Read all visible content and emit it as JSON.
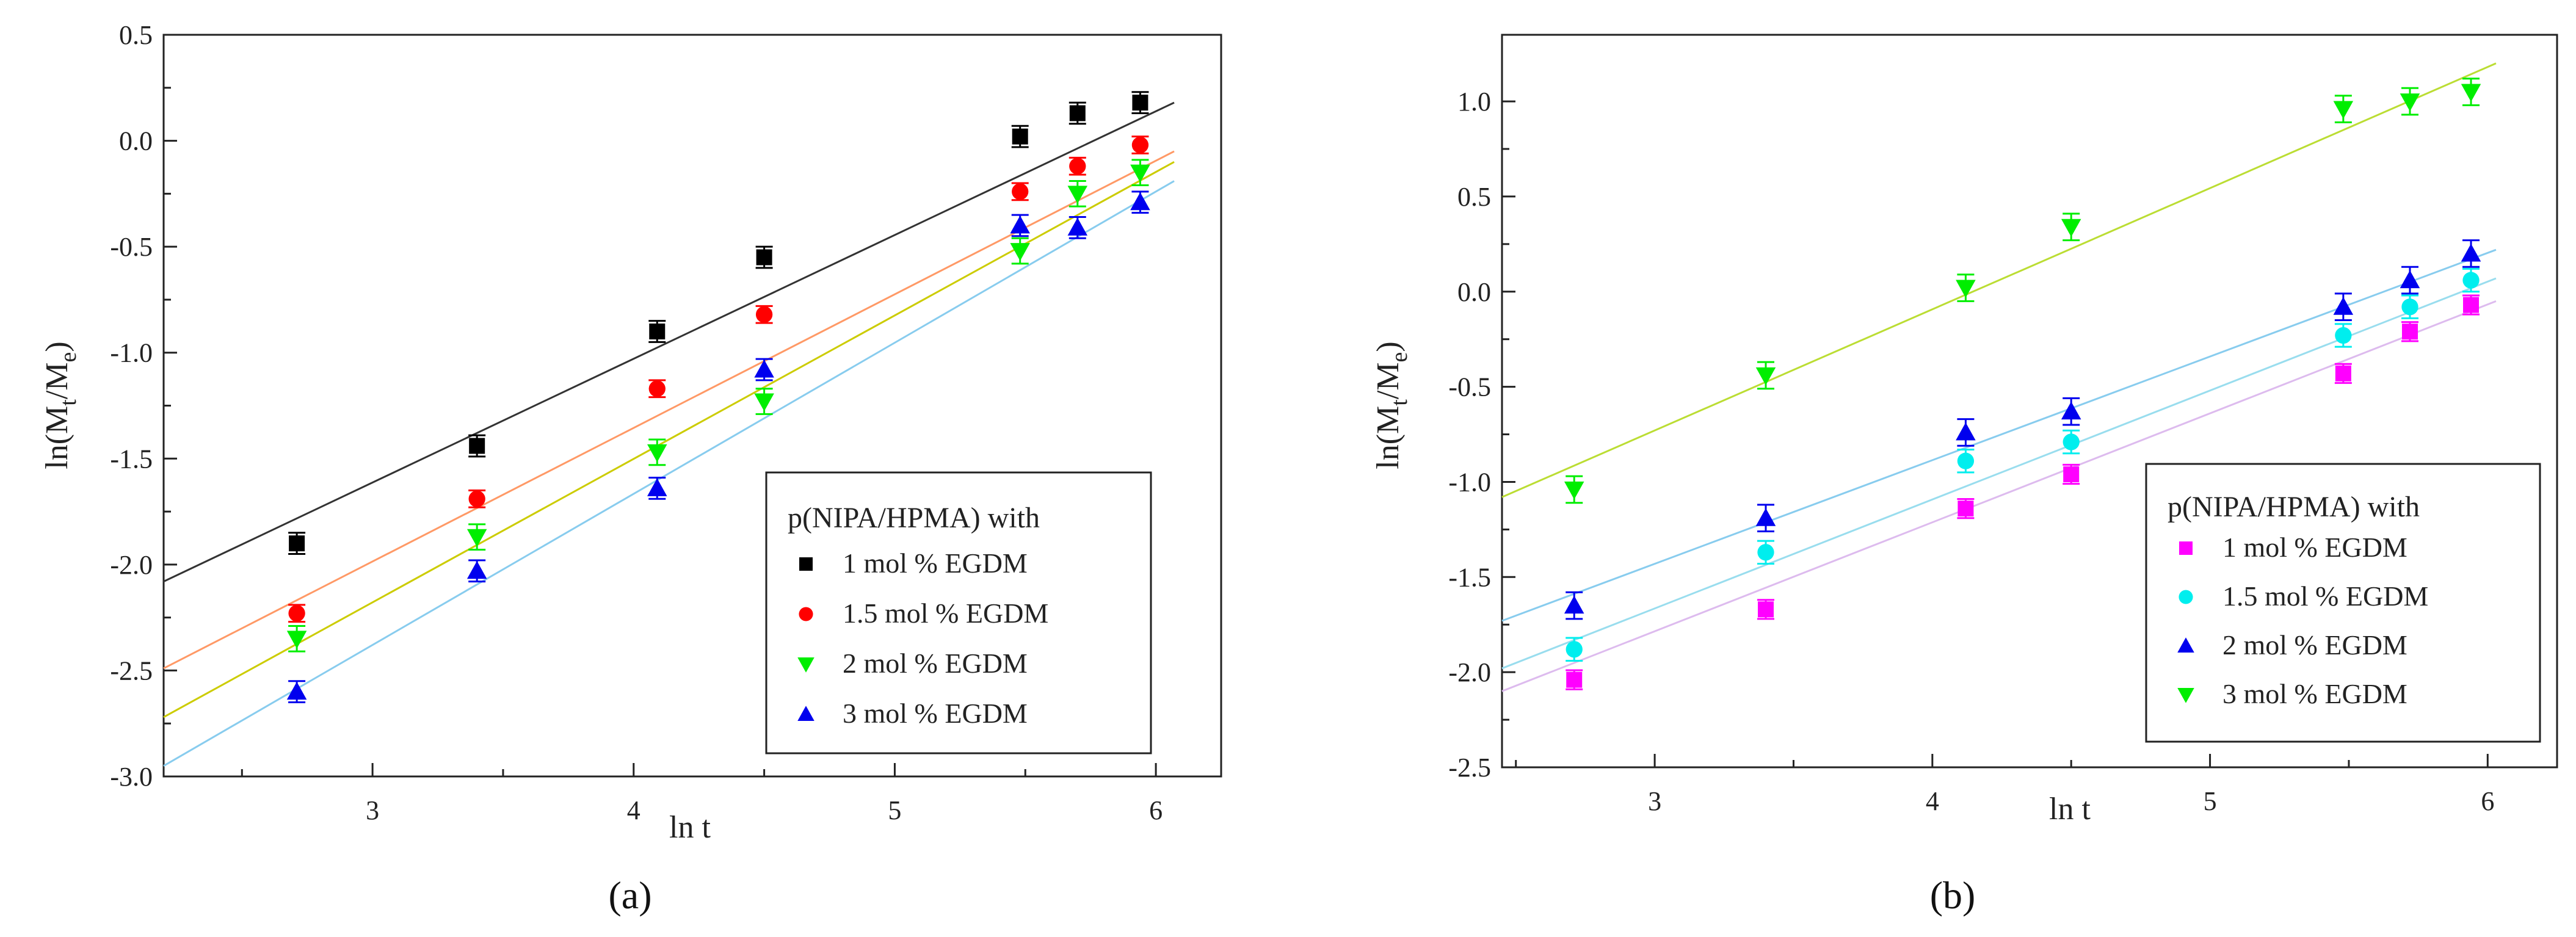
{
  "chart_data": [
    {
      "type": "scatter",
      "panel_label": "(a)",
      "xlabel": "ln t",
      "ylabel_main": "ln(M",
      "ylabel_sub1": "t",
      "ylabel_mid": "/M",
      "ylabel_sub2": "e",
      "ylabel_end": ")",
      "xlim": [
        2.2,
        6.25
      ],
      "ylim": [
        -3.0,
        0.5
      ],
      "xticks": [
        3,
        4,
        5,
        6
      ],
      "yticks": [
        -3.0,
        -2.5,
        -2.0,
        -1.5,
        -1.0,
        -0.5,
        0.0,
        0.5
      ],
      "ytick_labels": [
        "-3.0",
        "-2.5",
        "-2.0",
        "-1.5",
        "-1.0",
        "-0.5",
        "0.0",
        "0.5"
      ],
      "legend_title": "p(NIPA/HPMA) with",
      "legend_position": "bottom-right",
      "series": [
        {
          "name": "1 mol % EGDM",
          "color": "#000000",
          "marker": "square",
          "line_color": "#333333",
          "x": [
            2.71,
            3.4,
            4.09,
            4.5,
            5.48,
            5.7,
            5.94
          ],
          "y": [
            -1.9,
            -1.44,
            -0.9,
            -0.55,
            0.02,
            0.13,
            0.18
          ],
          "err": 0.05,
          "fit": [
            [
              2.2,
              -2.08
            ],
            [
              6.07,
              0.18
            ]
          ]
        },
        {
          "name": "1.5 mol % EGDM",
          "color": "#ff0000",
          "marker": "circle",
          "line_color": "#ff9966",
          "x": [
            2.71,
            3.4,
            4.09,
            4.5,
            5.48,
            5.7,
            5.94
          ],
          "y": [
            -2.23,
            -1.69,
            -1.17,
            -0.82,
            -0.24,
            -0.12,
            -0.02
          ],
          "err": 0.04,
          "fit": [
            [
              2.2,
              -2.49
            ],
            [
              6.07,
              -0.05
            ]
          ]
        },
        {
          "name": "2 mol % EGDM",
          "color": "#00ee00",
          "marker": "triangle-down",
          "line_color": "#cccc00",
          "x": [
            2.71,
            3.4,
            4.09,
            4.5,
            5.48,
            5.7,
            5.94
          ],
          "y": [
            -2.35,
            -1.87,
            -1.47,
            -1.23,
            -0.52,
            -0.25,
            -0.15
          ],
          "err": 0.06,
          "fit": [
            [
              2.2,
              -2.72
            ],
            [
              6.07,
              -0.1
            ]
          ]
        },
        {
          "name": "3 mol % EGDM",
          "color": "#0000ee",
          "marker": "triangle-up",
          "line_color": "#88ccee",
          "x": [
            2.71,
            3.4,
            4.09,
            4.5,
            5.48,
            5.7,
            5.94
          ],
          "y": [
            -2.6,
            -2.03,
            -1.64,
            -1.08,
            -0.4,
            -0.41,
            -0.29
          ],
          "err": 0.05,
          "fit": [
            [
              2.2,
              -2.95
            ],
            [
              6.07,
              -0.19
            ]
          ]
        }
      ]
    },
    {
      "type": "scatter",
      "panel_label": "(b)",
      "xlabel": "ln t",
      "ylabel_main": "ln(M",
      "ylabel_sub1": "t",
      "ylabel_mid": "/M",
      "ylabel_sub2": "e",
      "ylabel_end": ")",
      "xlim": [
        2.45,
        6.25
      ],
      "ylim": [
        -2.5,
        1.35
      ],
      "xticks": [
        3,
        4,
        5,
        6
      ],
      "yticks": [
        -2.5,
        -2.0,
        -1.5,
        -1.0,
        -0.5,
        0.0,
        0.5,
        1.0
      ],
      "ytick_labels": [
        "-2.5",
        "-2.0",
        "-1.5",
        "-1.0",
        "-0.5",
        "0.0",
        "0.5",
        "1.0"
      ],
      "legend_title": "p(NIPA/HPMA) with",
      "legend_position": "bottom-right",
      "series": [
        {
          "name": "1 mol % EGDM",
          "color": "#ff00ff",
          "marker": "square",
          "line_color": "#ddbbee",
          "x": [
            2.71,
            3.4,
            4.12,
            4.5,
            5.48,
            5.72,
            5.94
          ],
          "y": [
            -2.04,
            -1.67,
            -1.14,
            -0.96,
            -0.43,
            -0.21,
            -0.07
          ],
          "err": 0.05,
          "fit": [
            [
              2.45,
              -2.1
            ],
            [
              6.03,
              -0.05
            ]
          ]
        },
        {
          "name": "1.5 mol % EGDM",
          "color": "#00eeee",
          "marker": "circle",
          "line_color": "#99ddee",
          "x": [
            2.71,
            3.4,
            4.12,
            4.5,
            5.48,
            5.72,
            5.94
          ],
          "y": [
            -1.88,
            -1.37,
            -0.89,
            -0.79,
            -0.23,
            -0.08,
            0.06
          ],
          "err": 0.06,
          "fit": [
            [
              2.45,
              -1.98
            ],
            [
              6.03,
              0.07
            ]
          ]
        },
        {
          "name": "2 mol % EGDM",
          "color": "#0000ee",
          "marker": "triangle-up",
          "line_color": "#88ccee",
          "x": [
            2.71,
            3.4,
            4.12,
            4.5,
            5.48,
            5.72,
            5.94
          ],
          "y": [
            -1.65,
            -1.19,
            -0.74,
            -0.63,
            -0.08,
            0.06,
            0.2
          ],
          "err": 0.07,
          "fit": [
            [
              2.45,
              -1.73
            ],
            [
              6.03,
              0.22
            ]
          ]
        },
        {
          "name": "3 mol % EGDM",
          "color": "#00ee00",
          "marker": "triangle-down",
          "line_color": "#bbdd33",
          "x": [
            2.71,
            3.4,
            4.12,
            4.5,
            5.48,
            5.72,
            5.94
          ],
          "y": [
            -1.04,
            -0.44,
            0.02,
            0.34,
            0.96,
            1.0,
            1.05
          ],
          "err": 0.07,
          "fit": [
            [
              2.45,
              -1.08
            ],
            [
              6.03,
              1.2
            ]
          ]
        }
      ]
    }
  ]
}
